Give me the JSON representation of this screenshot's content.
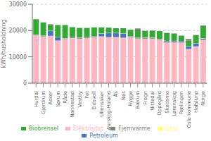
{
  "chart_data": {
    "type": "bar",
    "stacked": true,
    "grid": true,
    "legend": "bottom",
    "ylabel": "kWh/husholdning",
    "categories": [
      "Hurdal",
      "Gjerdrum",
      "Asker",
      "Sørum",
      "Råde",
      "Nannestad",
      "Vestby",
      "Fet",
      "Eidsvoll",
      "Ullensaker",
      "Aurskog-Holand",
      "Ås",
      "Nes",
      "Rygge",
      "Bærum",
      "Frogn",
      "Nittedal",
      "Oppegård",
      "Skedsmo",
      "Lørenskog",
      "Rælingen",
      "Oslo kommune",
      "Hafslund",
      "Norge"
    ],
    "series": [
      {
        "name": "Elektrisitet",
        "color": "#FFB6C1",
        "values": [
          18200,
          17800,
          18000,
          16200,
          16800,
          17200,
          17000,
          17200,
          17500,
          17800,
          17500,
          17500,
          17300,
          17500,
          17000,
          17000,
          17000,
          16500,
          15500,
          15500,
          15500,
          13000,
          14000,
          16500
        ]
      },
      {
        "name": "Petroleum",
        "color": "#4472C4",
        "values": [
          200,
          200,
          1800,
          1200,
          200,
          200,
          200,
          200,
          200,
          1000,
          1500,
          1500,
          1500,
          200,
          200,
          200,
          200,
          200,
          500,
          500,
          500,
          1000,
          1000,
          400
        ]
      },
      {
        "name": "Gass",
        "color": "#FFFF66",
        "values": [
          100,
          100,
          100,
          100,
          100,
          100,
          100,
          100,
          100,
          100,
          100,
          100,
          100,
          100,
          100,
          100,
          100,
          100,
          100,
          100,
          100,
          100,
          100,
          150
        ]
      },
      {
        "name": "Biobrensel",
        "color": "#33AA33",
        "values": [
          5800,
          5000,
          2100,
          4600,
          5000,
          3800,
          3700,
          3500,
          3400,
          2300,
          2000,
          1800,
          2000,
          2500,
          2800,
          2600,
          2700,
          3000,
          3000,
          2800,
          2000,
          2000,
          3200,
          4700
        ]
      },
      {
        "name": "Fjernvarme",
        "color": "#808080",
        "values": [
          0,
          0,
          400,
          0,
          0,
          0,
          0,
          0,
          0,
          0,
          0,
          0,
          0,
          0,
          700,
          0,
          0,
          0,
          0,
          0,
          0,
          700,
          0,
          200
        ]
      }
    ],
    "ylim": [
      0,
      30000
    ],
    "yticks": [
      0,
      10000,
      20000,
      30000
    ]
  }
}
